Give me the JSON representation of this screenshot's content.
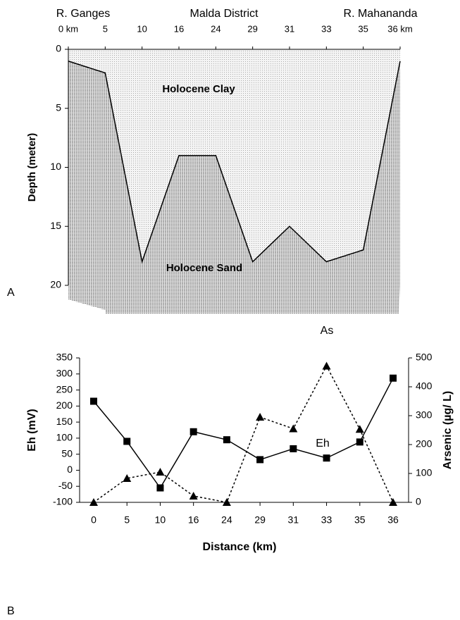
{
  "chart_data": [
    {
      "type": "section",
      "annotations": [
        "R. Ganges",
        "Malda District",
        "R. Mahananda"
      ],
      "categories": [
        "0 km",
        "5",
        "10",
        "16",
        "24",
        "29",
        "31",
        "33",
        "35",
        "36 km"
      ],
      "values": [
        1,
        2,
        18,
        9,
        9,
        18,
        15,
        18,
        17,
        1
      ],
      "ylabel": "Depth (meter)",
      "ylim": [
        0,
        20
      ],
      "yticks": [
        0,
        5,
        10,
        15,
        20
      ],
      "y_inverted": true,
      "upper_label": "Holocene Clay",
      "lower_label": "Holocene Sand",
      "panel_label": "A"
    },
    {
      "type": "line",
      "categories": [
        "0",
        "5",
        "10",
        "16",
        "24",
        "29",
        "31",
        "33",
        "35",
        "36"
      ],
      "series": [
        {
          "name": "Eh",
          "color": "#000000",
          "marker": "square",
          "dash": false,
          "values": [
            215,
            90,
            -55,
            120,
            95,
            33,
            67,
            38,
            88,
            287
          ]
        },
        {
          "name": "As",
          "color": "#000000",
          "marker": "triangle",
          "dash": true,
          "axis": "y2",
          "values": [
            0,
            83,
            105,
            22,
            0,
            295,
            255,
            472,
            253,
            0
          ]
        }
      ],
      "xlabel": "Distance (km)",
      "ylabel": "Eh (mV)",
      "y2label": "Arsenic (µg/ L)",
      "ylim": [
        -100,
        350
      ],
      "yticks": [
        -100,
        -50,
        0,
        50,
        100,
        150,
        200,
        250,
        300,
        350
      ],
      "y2lim": [
        0,
        500
      ],
      "y2ticks": [
        0,
        100,
        200,
        300,
        400,
        500
      ],
      "panel_label": "B"
    }
  ]
}
